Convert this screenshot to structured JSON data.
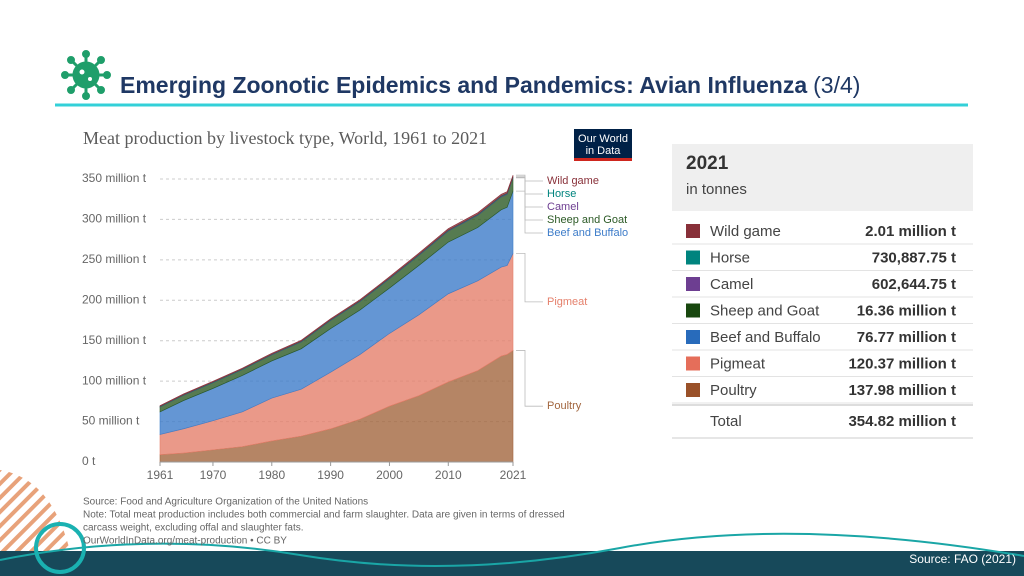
{
  "header": {
    "title": "Emerging Zoonotic Epidemics and Pandemics: Avian Influenza",
    "part": "(3/4)"
  },
  "chart_data": {
    "type": "stacked-area",
    "title": "Meat production by livestock type, World, 1961 to 2021",
    "logo": [
      "Our World",
      "in Data"
    ],
    "x": [
      1961,
      1965,
      1970,
      1975,
      1980,
      1985,
      1990,
      1995,
      2000,
      2005,
      2010,
      2015,
      2019,
      2020,
      2021
    ],
    "xlim": [
      1961,
      2021
    ],
    "xticks": [
      1961,
      1970,
      1980,
      1990,
      2000,
      2010,
      2021
    ],
    "ylim": [
      0,
      350
    ],
    "yticks": [
      {
        "value": 0,
        "label": "0 t"
      },
      {
        "value": 50,
        "label": "50 million t"
      },
      {
        "value": 100,
        "label": "100 million t"
      },
      {
        "value": 150,
        "label": "150 million t"
      },
      {
        "value": 200,
        "label": "200 million t"
      },
      {
        "value": 250,
        "label": "250 million t"
      },
      {
        "value": 300,
        "label": "300 million t"
      },
      {
        "value": 350,
        "label": "350 million t"
      }
    ],
    "grid": true,
    "series": [
      {
        "name": "Poultry",
        "color": "#a2663f",
        "values": [
          9,
          11,
          15,
          19,
          26,
          32,
          41,
          53,
          69,
          82,
          99,
          113,
          131,
          133,
          138
        ]
      },
      {
        "name": "Pigmeat",
        "color": "#e5806c",
        "values": [
          25,
          30,
          36,
          43,
          53,
          58,
          70,
          80,
          90,
          100,
          109,
          111,
          110,
          110,
          120
        ]
      },
      {
        "name": "Beef and Buffalo",
        "color": "#3d7cc9",
        "values": [
          28,
          35,
          40,
          45,
          46,
          50,
          54,
          55,
          56,
          61,
          64,
          66,
          71,
          72,
          77
        ]
      },
      {
        "name": "Sheep and Goat",
        "color": "#2c5a26",
        "values": [
          6,
          6.5,
          7,
          7.2,
          7.5,
          8.5,
          10,
          10.5,
          11.5,
          12.5,
          13.5,
          15,
          15.8,
          16,
          16.4
        ]
      },
      {
        "name": "Camel",
        "color": "#6d3e91",
        "values": [
          0.2,
          0.2,
          0.2,
          0.25,
          0.25,
          0.3,
          0.3,
          0.3,
          0.35,
          0.4,
          0.45,
          0.55,
          0.6,
          0.6,
          0.6
        ]
      },
      {
        "name": "Horse",
        "color": "#00847e",
        "values": [
          0.5,
          0.5,
          0.55,
          0.55,
          0.55,
          0.6,
          0.6,
          0.65,
          0.7,
          0.72,
          0.75,
          0.75,
          0.73,
          0.73,
          0.73
        ]
      },
      {
        "name": "Wild game",
        "color": "#883039",
        "values": [
          1,
          1,
          1.1,
          1.1,
          1.2,
          1.2,
          1.3,
          1.4,
          1.5,
          1.7,
          1.9,
          2,
          2,
          2,
          2
        ]
      }
    ],
    "notes": [
      "Source: Food and Agriculture Organization of the United Nations",
      "Note: Total meat production includes both commercial and farm slaughter. Data are given in terms of dressed",
      "carcass weight, excluding offal and slaughter fats.",
      "OurWorldInData.org/meat-production • CC BY"
    ]
  },
  "table": {
    "year": "2021",
    "unit": "in tonnes",
    "rows": [
      {
        "label": "Wild game",
        "color": "#883039",
        "value": "2.01 million t"
      },
      {
        "label": "Horse",
        "color": "#00847e",
        "value": "730,887.75 t"
      },
      {
        "label": "Camel",
        "color": "#6d3e91",
        "value": "602,644.75 t"
      },
      {
        "label": "Sheep and Goat",
        "color": "#18470f",
        "value": "16.36 million t"
      },
      {
        "label": "Beef and Buffalo",
        "color": "#286bbb",
        "value": "76.77 million t"
      },
      {
        "label": "Pigmeat",
        "color": "#e56e5a",
        "value": "120.37 million t"
      },
      {
        "label": "Poultry",
        "color": "#9a5129",
        "value": "137.98 million t"
      }
    ],
    "total": {
      "label": "Total",
      "value": "354.82 million t"
    }
  },
  "footer": {
    "source": "Source: FAO (2021)"
  }
}
